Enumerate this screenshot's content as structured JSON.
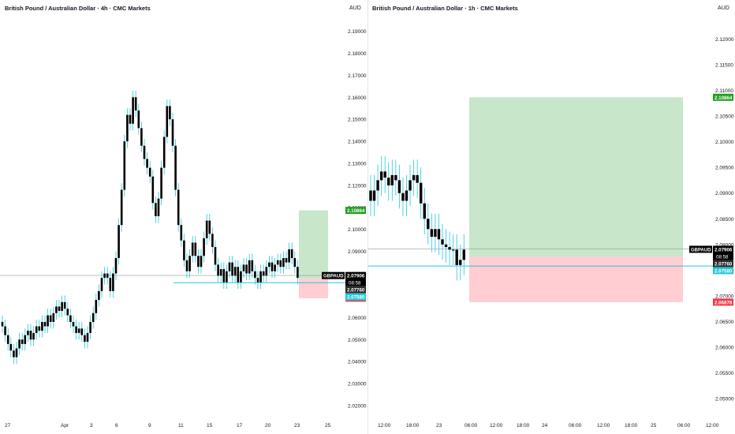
{
  "colors": {
    "candle": "#000000",
    "wick": "#26c6da",
    "target_zone": "#c8e6c9",
    "stop_zone": "#ffcdd2",
    "target_tag": "#1e9e1e",
    "stop_tag": "#f23645",
    "last_tag": "#000000",
    "entry_tag": "#2a2a2a",
    "entry_line": "#26c6da",
    "axis_text": "#131722"
  },
  "chart_data": [
    {
      "type": "candlestick",
      "title": "British Pound / Australian Dollar · 4h · CMC Markets",
      "currency": "AUD",
      "ylim": [
        2.015,
        2.197
      ],
      "y_ticks": [
        "2.19000",
        "2.18000",
        "2.17000",
        "2.16000",
        "2.15000",
        "2.14000",
        "2.13000",
        "2.12000",
        "2.11000",
        "2.10000",
        "2.09000",
        "2.08000",
        "2.07000",
        "2.06000",
        "2.05000",
        "2.04000",
        "2.03000",
        "2.02000"
      ],
      "x_ticks": [
        "27",
        "Apr",
        "3",
        "6",
        "9",
        "11",
        "15",
        "17",
        "20",
        "23",
        "25"
      ],
      "symbol_label": "GBPAUD",
      "last_price": "2.07906",
      "countdown": "08:58",
      "entry_price": "2.07760",
      "stop_price": "2.06878",
      "target_price": "2.10864",
      "entry_line_price": "2.07580",
      "price_line": 2.0791,
      "closes": [
        2.056,
        2.052,
        2.048,
        2.045,
        2.042,
        2.046,
        2.05,
        2.048,
        2.052,
        2.054,
        2.05,
        2.053,
        2.056,
        2.054,
        2.058,
        2.056,
        2.061,
        2.058,
        2.062,
        2.065,
        2.063,
        2.067,
        2.064,
        2.061,
        2.058,
        2.056,
        2.053,
        2.055,
        2.052,
        2.049,
        2.053,
        2.058,
        2.062,
        2.068,
        2.072,
        2.078,
        2.08,
        2.078,
        2.072,
        2.08,
        2.087,
        2.102,
        2.118,
        2.14,
        2.152,
        2.148,
        2.16,
        2.154,
        2.146,
        2.138,
        2.132,
        2.128,
        2.124,
        2.112,
        2.106,
        2.114,
        2.128,
        2.142,
        2.156,
        2.15,
        2.138,
        2.118,
        2.102,
        2.095,
        2.086,
        2.081,
        2.088,
        2.094,
        2.088,
        2.083,
        2.088,
        2.096,
        2.104,
        2.098,
        2.092,
        2.084,
        2.079,
        2.082,
        2.076,
        2.081,
        2.085,
        2.079,
        2.083,
        2.076,
        2.081,
        2.084,
        2.08,
        2.086,
        2.081,
        2.078,
        2.076,
        2.081,
        2.079,
        2.083,
        2.085,
        2.081,
        2.084,
        2.086,
        2.083,
        2.087,
        2.085,
        2.091,
        2.087,
        2.083,
        2.078
      ],
      "trade_box": {
        "start_index": 104,
        "end_index": 113
      }
    },
    {
      "type": "candlestick",
      "title": "British Pound / Australian Dollar · 1h · CMC Markets",
      "currency": "AUD",
      "ylim": [
        2.0465,
        2.1245
      ],
      "y_ticks": [
        "2.12000",
        "2.11500",
        "2.11000",
        "2.10500",
        "2.10000",
        "2.09500",
        "2.09000",
        "2.08500",
        "2.08000",
        "2.07500",
        "2.07000",
        "2.06500",
        "2.06000",
        "2.05500",
        "2.05000"
      ],
      "x_ticks": [
        "12:00",
        "18:00",
        "23",
        "06:00",
        "12:00",
        "18:00",
        "24",
        "06:00",
        "12:00",
        "18:00",
        "25",
        "06:00",
        "12:00"
      ],
      "symbol_label": "GBPAUD",
      "last_price": "2.07906",
      "countdown": "08:58",
      "entry_price": "2.07760",
      "stop_price": "2.06878",
      "target_price": "2.10864",
      "entry_line_price": "2.07580",
      "price_line": 2.0791,
      "closes": [
        2.0885,
        2.0905,
        2.0925,
        2.0942,
        2.093,
        2.0915,
        2.0935,
        2.0925,
        2.09,
        2.0885,
        2.0905,
        2.0925,
        2.0935,
        2.092,
        2.088,
        2.085,
        2.083,
        2.0815,
        2.083,
        2.081,
        2.08,
        2.0795,
        2.079,
        2.079,
        2.076,
        2.077,
        2.079
      ],
      "trade_box": {
        "start_index": 25,
        "end_index": 66
      }
    }
  ]
}
